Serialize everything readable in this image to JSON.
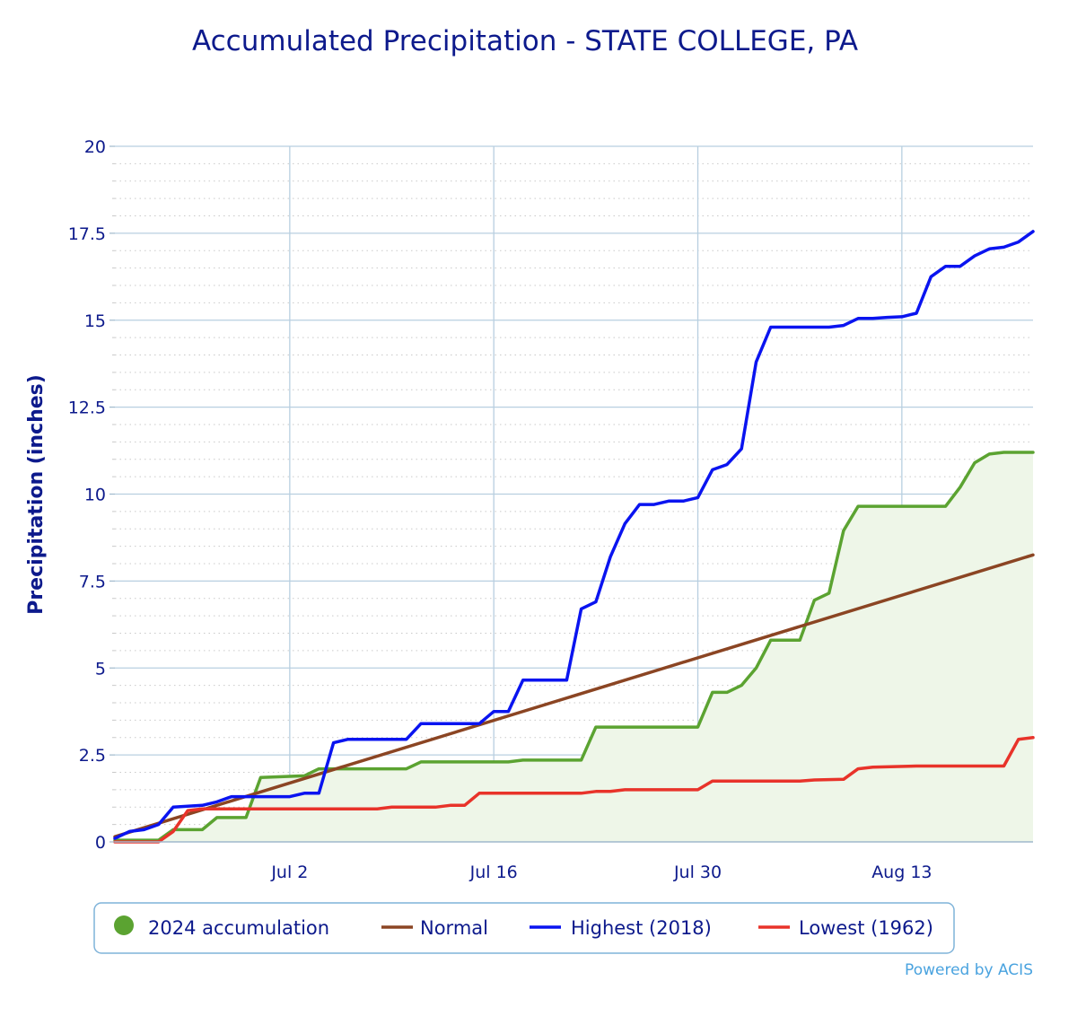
{
  "chart_data": {
    "type": "line",
    "title": "Accumulated Precipitation - STATE COLLEGE, PA",
    "ylabel": "Precipitation (inches)",
    "xlabel": "",
    "x_range": [
      "Jun 20",
      "Aug 22"
    ],
    "x_ticks": [
      {
        "label": "Jul 2",
        "day": 12
      },
      {
        "label": "Jul 16",
        "day": 26
      },
      {
        "label": "Jul 30",
        "day": 40
      },
      {
        "label": "Aug 13",
        "day": 54
      }
    ],
    "ylim": [
      0,
      20
    ],
    "y_ticks": [
      "0",
      "2.5",
      "5",
      "7.5",
      "10",
      "12.5",
      "15",
      "17.5",
      "20"
    ],
    "grid": true,
    "legend_position": "bottom",
    "credit": "Powered by ACIS",
    "series": [
      {
        "name": "2024 accumulation",
        "style": "area",
        "color": "#5ba331",
        "fill": "#eef6e8",
        "points": [
          [
            0,
            0.05
          ],
          [
            3,
            0.05
          ],
          [
            4,
            0.35
          ],
          [
            6,
            0.35
          ],
          [
            7,
            0.7
          ],
          [
            9,
            0.7
          ],
          [
            10,
            1.85
          ],
          [
            13,
            1.9
          ],
          [
            14,
            2.1
          ],
          [
            20,
            2.1
          ],
          [
            21,
            2.3
          ],
          [
            27,
            2.3
          ],
          [
            28,
            2.35
          ],
          [
            32,
            2.35
          ],
          [
            33,
            3.3
          ],
          [
            40,
            3.3
          ],
          [
            41,
            4.3
          ],
          [
            42,
            4.3
          ],
          [
            43,
            4.5
          ],
          [
            44,
            5.0
          ],
          [
            45,
            5.8
          ],
          [
            47,
            5.8
          ],
          [
            48,
            6.95
          ],
          [
            49,
            7.15
          ],
          [
            50,
            8.95
          ],
          [
            51,
            9.65
          ],
          [
            57,
            9.65
          ],
          [
            58,
            10.2
          ],
          [
            59,
            10.9
          ],
          [
            60,
            11.15
          ],
          [
            61,
            11.2
          ],
          [
            63,
            11.2
          ]
        ]
      },
      {
        "name": "Normal",
        "style": "line",
        "color": "#8b4523",
        "points": [
          [
            0,
            0.15
          ],
          [
            63,
            8.25
          ]
        ]
      },
      {
        "name": "Highest (2018)",
        "style": "line",
        "color": "#0a14f0",
        "points": [
          [
            0,
            0.1
          ],
          [
            1,
            0.3
          ],
          [
            2,
            0.35
          ],
          [
            3,
            0.5
          ],
          [
            4,
            1.0
          ],
          [
            6,
            1.05
          ],
          [
            7,
            1.15
          ],
          [
            8,
            1.3
          ],
          [
            9,
            1.3
          ],
          [
            12,
            1.3
          ],
          [
            13,
            1.4
          ],
          [
            14,
            1.4
          ],
          [
            15,
            2.85
          ],
          [
            16,
            2.95
          ],
          [
            20,
            2.95
          ],
          [
            21,
            3.4
          ],
          [
            25,
            3.4
          ],
          [
            26,
            3.75
          ],
          [
            27,
            3.75
          ],
          [
            28,
            4.65
          ],
          [
            31,
            4.65
          ],
          [
            32,
            6.7
          ],
          [
            33,
            6.9
          ],
          [
            34,
            8.2
          ],
          [
            35,
            9.15
          ],
          [
            36,
            9.7
          ],
          [
            37,
            9.7
          ],
          [
            38,
            9.8
          ],
          [
            39,
            9.8
          ],
          [
            40,
            9.9
          ],
          [
            41,
            10.7
          ],
          [
            42,
            10.85
          ],
          [
            43,
            11.3
          ],
          [
            44,
            13.8
          ],
          [
            45,
            14.8
          ],
          [
            49,
            14.8
          ],
          [
            50,
            14.85
          ],
          [
            51,
            15.05
          ],
          [
            52,
            15.05
          ],
          [
            53,
            15.08
          ],
          [
            54,
            15.1
          ],
          [
            55,
            15.2
          ],
          [
            56,
            16.25
          ],
          [
            57,
            16.55
          ],
          [
            58,
            16.55
          ],
          [
            59,
            16.85
          ],
          [
            60,
            17.05
          ],
          [
            61,
            17.1
          ],
          [
            62,
            17.25
          ],
          [
            63,
            17.55
          ]
        ]
      },
      {
        "name": "Lowest (1962)",
        "style": "line",
        "color": "#e8332a",
        "points": [
          [
            0,
            0.0
          ],
          [
            3,
            0.0
          ],
          [
            4,
            0.3
          ],
          [
            5,
            0.9
          ],
          [
            6,
            0.95
          ],
          [
            13,
            0.95
          ],
          [
            18,
            0.95
          ],
          [
            19,
            1.0
          ],
          [
            22,
            1.0
          ],
          [
            23,
            1.05
          ],
          [
            24,
            1.05
          ],
          [
            25,
            1.4
          ],
          [
            28,
            1.4
          ],
          [
            32,
            1.4
          ],
          [
            33,
            1.45
          ],
          [
            34,
            1.45
          ],
          [
            35,
            1.5
          ],
          [
            40,
            1.5
          ],
          [
            41,
            1.75
          ],
          [
            45,
            1.75
          ],
          [
            47,
            1.75
          ],
          [
            48,
            1.78
          ],
          [
            50,
            1.8
          ],
          [
            51,
            2.1
          ],
          [
            52,
            2.15
          ],
          [
            55,
            2.18
          ],
          [
            61,
            2.18
          ],
          [
            62,
            2.95
          ],
          [
            63,
            3.0
          ]
        ]
      }
    ]
  }
}
